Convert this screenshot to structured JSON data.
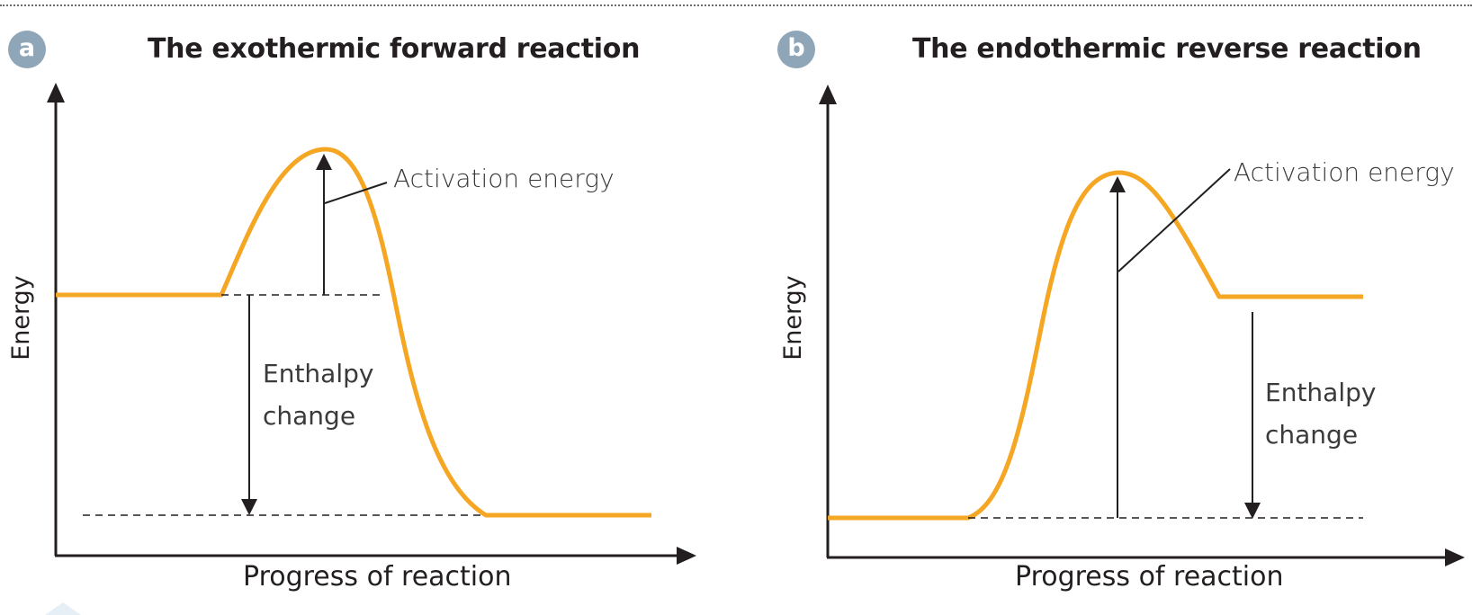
{
  "panel_a": {
    "badge": "a",
    "title": "The exothermic forward reaction",
    "y_axis_label": "Energy",
    "x_axis_label": "Progress of reaction",
    "activation_label": "Activation energy",
    "enthalpy_label_line1": "Enthalpy",
    "enthalpy_label_line2": "change"
  },
  "panel_b": {
    "badge": "b",
    "title": "The endothermic reverse reaction",
    "y_axis_label": "Energy",
    "x_axis_label": "Progress of reaction",
    "activation_label": "Activation energy",
    "enthalpy_label_line1": "Enthalpy",
    "enthalpy_label_line2": "change"
  },
  "colors": {
    "curve": "#f5a623",
    "axis": "#231f20",
    "badge": "#8fa6b8"
  }
}
